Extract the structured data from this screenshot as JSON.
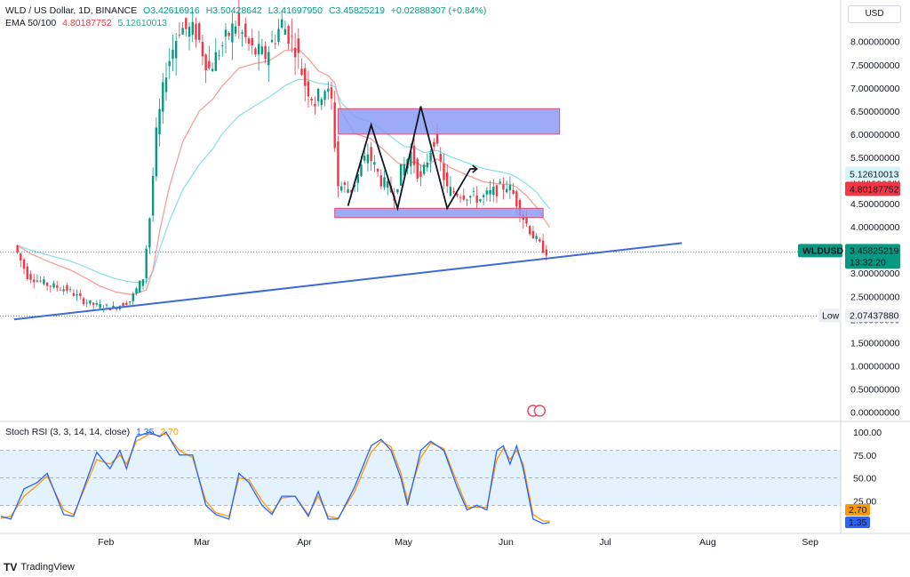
{
  "header": {
    "symbol": "WLD / US Dollar, 1D, BINANCE",
    "o": "O3.42616916",
    "h": "H3.50428642",
    "l": "L3.41697950",
    "c": "C3.45825219",
    "change": "+0.02888307 (+0.84%)",
    "ema_label": "EMA 50/100",
    "ema50": "4.80187752",
    "ema100": "5.12610013"
  },
  "currency_button": "USD",
  "rsi_header": {
    "label": "Stoch RSI (3, 3, 14, 14, close)",
    "k": "1.35",
    "d": "2.70"
  },
  "brand": "TradingView",
  "colors": {
    "up": "#089981",
    "down": "#f23645",
    "ema50": "#f4a09c",
    "ema100": "#8fdfe6",
    "trendline": "#3d6ad6",
    "zone_fill": "#8c9bf5",
    "zone_border": "#e54b6a",
    "k_line": "#2962ff",
    "d_line": "#ff9800",
    "rsi_band": "#e3f2fd"
  },
  "chart_data": [
    {
      "type": "candlestick",
      "title": "WLD / US Dollar, 1D, BINANCE",
      "x_labels": [
        "Feb",
        "Mar",
        "Apr",
        "May",
        "Jun",
        "Jul",
        "Aug",
        "Sep"
      ],
      "ylim": [
        0,
        8.4
      ],
      "y_ticks": [
        "0.00000000",
        "0.50000000",
        "1.00000000",
        "1.50000000",
        "2.00000000",
        "2.50000000",
        "3.00000000",
        "3.50000000",
        "4.00000000",
        "4.50000000",
        "5.00000000",
        "5.50000000",
        "6.00000000",
        "6.50000000",
        "7.00000000",
        "7.50000000",
        "8.00000000"
      ],
      "series": [
        {
          "name": "EMA 50",
          "last": 4.80187752
        },
        {
          "name": "EMA 100",
          "last": 5.12610013
        }
      ],
      "close_path": [
        [
          "2024-01-06",
          3.6
        ],
        [
          "2024-01-10",
          2.95
        ],
        [
          "2024-01-16",
          2.75
        ],
        [
          "2024-01-22",
          2.65
        ],
        [
          "2024-01-27",
          2.4
        ],
        [
          "2024-01-31",
          2.3
        ],
        [
          "2024-02-05",
          2.25
        ],
        [
          "2024-02-10",
          2.4
        ],
        [
          "2024-02-14",
          2.9
        ],
        [
          "2024-02-16",
          4.2
        ],
        [
          "2024-02-18",
          6.0
        ],
        [
          "2024-02-21",
          7.4
        ],
        [
          "2024-02-25",
          8.3
        ],
        [
          "2024-03-01",
          8.2
        ],
        [
          "2024-03-05",
          7.4
        ],
        [
          "2024-03-08",
          7.8
        ],
        [
          "2024-03-13",
          8.4
        ],
        [
          "2024-03-18",
          7.8
        ],
        [
          "2024-03-22",
          7.7
        ],
        [
          "2024-03-27",
          8.4
        ],
        [
          "2024-03-31",
          7.9
        ],
        [
          "2024-04-03",
          7.1
        ],
        [
          "2024-04-06",
          6.7
        ],
        [
          "2024-04-09",
          7.0
        ],
        [
          "2024-04-11",
          6.7
        ],
        [
          "2024-04-13",
          4.9
        ],
        [
          "2024-04-17",
          4.8
        ],
        [
          "2024-04-22",
          5.6
        ],
        [
          "2024-04-26",
          5.0
        ],
        [
          "2024-04-30",
          4.7
        ],
        [
          "2024-05-02",
          5.2
        ],
        [
          "2024-05-05",
          5.6
        ],
        [
          "2024-05-08",
          5.0
        ],
        [
          "2024-05-12",
          5.9
        ],
        [
          "2024-05-16",
          4.8
        ],
        [
          "2024-05-21",
          4.7
        ],
        [
          "2024-05-26",
          4.6
        ],
        [
          "2024-05-31",
          4.8
        ],
        [
          "2024-06-03",
          4.9
        ],
        [
          "2024-06-05",
          4.7
        ],
        [
          "2024-06-08",
          4.2
        ],
        [
          "2024-06-11",
          3.8
        ],
        [
          "2024-06-13",
          3.6
        ],
        [
          "2024-06-15",
          3.46
        ]
      ],
      "price_labels": [
        {
          "name": "EMA 100",
          "value": "5.12610013"
        },
        {
          "name": "EMA 50",
          "value": "4.80187752"
        },
        {
          "name": "WLDUSD",
          "value": "3.45825219",
          "countdown": "13:32:20"
        },
        {
          "name": "Low",
          "value": "2.07437880"
        }
      ],
      "drawings": {
        "resistance_zone": [
          6.0,
          6.55
        ],
        "support_zone": [
          4.2,
          4.4
        ],
        "trendline": [
          [
            "2024-01-05",
            2.0
          ],
          [
            "2024-07-25",
            3.65
          ]
        ],
        "zigzag": [
          [
            "2024-04-15",
            4.45
          ],
          [
            "2024-04-22",
            6.2
          ],
          [
            "2024-04-30",
            4.4
          ],
          [
            "2024-05-07",
            6.6
          ],
          [
            "2024-05-15",
            4.4
          ],
          [
            "2024-05-22",
            5.25
          ],
          [
            "2024-05-24",
            5.25
          ]
        ]
      }
    },
    {
      "type": "line",
      "title": "Stoch RSI (3, 3, 14, 14, close)",
      "ylim": [
        0,
        100
      ],
      "y_ticks": [
        "100.00",
        "75.00",
        "50.00",
        "25.00"
      ],
      "series": [
        {
          "name": "K",
          "last": 1.35,
          "values": [
            [
              "2024-01-01",
              8
            ],
            [
              "2024-01-04",
              5
            ],
            [
              "2024-01-08",
              38
            ],
            [
              "2024-01-12",
              45
            ],
            [
              "2024-01-15",
              55
            ],
            [
              "2024-01-20",
              10
            ],
            [
              "2024-01-23",
              8
            ],
            [
              "2024-01-30",
              78
            ],
            [
              "2024-02-03",
              60
            ],
            [
              "2024-02-06",
              80
            ],
            [
              "2024-02-08",
              60
            ],
            [
              "2024-02-11",
              95
            ],
            [
              "2024-02-15",
              100
            ],
            [
              "2024-02-18",
              95
            ],
            [
              "2024-02-20",
              100
            ],
            [
              "2024-02-24",
              75
            ],
            [
              "2024-02-28",
              75
            ],
            [
              "2024-03-03",
              20
            ],
            [
              "2024-03-06",
              10
            ],
            [
              "2024-03-10",
              5
            ],
            [
              "2024-03-13",
              55
            ],
            [
              "2024-03-16",
              45
            ],
            [
              "2024-03-20",
              20
            ],
            [
              "2024-03-23",
              10
            ],
            [
              "2024-03-26",
              30
            ],
            [
              "2024-03-30",
              30
            ],
            [
              "2024-04-03",
              8
            ],
            [
              "2024-04-06",
              35
            ],
            [
              "2024-04-09",
              5
            ],
            [
              "2024-04-12",
              5
            ],
            [
              "2024-04-17",
              40
            ],
            [
              "2024-04-22",
              85
            ],
            [
              "2024-04-25",
              92
            ],
            [
              "2024-04-28",
              80
            ],
            [
              "2024-05-01",
              50
            ],
            [
              "2024-05-03",
              20
            ],
            [
              "2024-05-07",
              80
            ],
            [
              "2024-05-10",
              90
            ],
            [
              "2024-05-14",
              80
            ],
            [
              "2024-05-18",
              40
            ],
            [
              "2024-05-21",
              15
            ],
            [
              "2024-05-24",
              20
            ],
            [
              "2024-05-27",
              15
            ],
            [
              "2024-05-30",
              80
            ],
            [
              "2024-06-01",
              85
            ],
            [
              "2024-06-03",
              65
            ],
            [
              "2024-06-05",
              85
            ],
            [
              "2024-06-07",
              60
            ],
            [
              "2024-06-10",
              5
            ],
            [
              "2024-06-13",
              0
            ],
            [
              "2024-06-15",
              1.35
            ]
          ]
        },
        {
          "name": "D",
          "last": 2.7,
          "values": [
            [
              "2024-01-01",
              6
            ],
            [
              "2024-01-04",
              8
            ],
            [
              "2024-01-08",
              30
            ],
            [
              "2024-01-12",
              42
            ],
            [
              "2024-01-15",
              52
            ],
            [
              "2024-01-20",
              15
            ],
            [
              "2024-01-23",
              10
            ],
            [
              "2024-01-30",
              70
            ],
            [
              "2024-02-03",
              65
            ],
            [
              "2024-02-06",
              75
            ],
            [
              "2024-02-08",
              65
            ],
            [
              "2024-02-11",
              90
            ],
            [
              "2024-02-15",
              98
            ],
            [
              "2024-02-18",
              96
            ],
            [
              "2024-02-20",
              98
            ],
            [
              "2024-02-24",
              80
            ],
            [
              "2024-02-28",
              72
            ],
            [
              "2024-03-03",
              25
            ],
            [
              "2024-03-06",
              12
            ],
            [
              "2024-03-10",
              8
            ],
            [
              "2024-03-13",
              50
            ],
            [
              "2024-03-16",
              48
            ],
            [
              "2024-03-20",
              25
            ],
            [
              "2024-03-23",
              12
            ],
            [
              "2024-03-26",
              28
            ],
            [
              "2024-03-30",
              30
            ],
            [
              "2024-04-03",
              10
            ],
            [
              "2024-04-06",
              30
            ],
            [
              "2024-04-09",
              8
            ],
            [
              "2024-04-12",
              6
            ],
            [
              "2024-04-17",
              35
            ],
            [
              "2024-04-22",
              78
            ],
            [
              "2024-04-25",
              90
            ],
            [
              "2024-04-28",
              84
            ],
            [
              "2024-05-01",
              55
            ],
            [
              "2024-05-03",
              25
            ],
            [
              "2024-05-07",
              72
            ],
            [
              "2024-05-10",
              88
            ],
            [
              "2024-05-14",
              82
            ],
            [
              "2024-05-18",
              45
            ],
            [
              "2024-05-21",
              18
            ],
            [
              "2024-05-24",
              18
            ],
            [
              "2024-05-27",
              18
            ],
            [
              "2024-05-30",
              70
            ],
            [
              "2024-06-01",
              82
            ],
            [
              "2024-06-03",
              70
            ],
            [
              "2024-06-05",
              80
            ],
            [
              "2024-06-07",
              65
            ],
            [
              "2024-06-10",
              10
            ],
            [
              "2024-06-13",
              3
            ],
            [
              "2024-06-15",
              2.7
            ]
          ]
        }
      ]
    }
  ]
}
